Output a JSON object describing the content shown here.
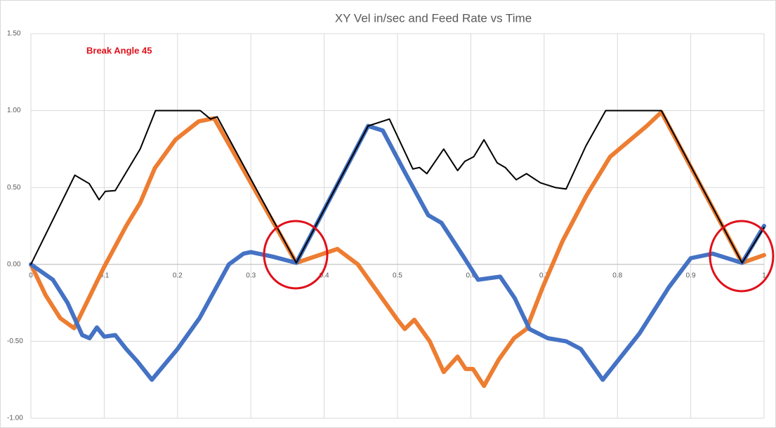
{
  "chart_data": {
    "type": "line",
    "title": "XY Vel in/sec and Feed Rate vs Time",
    "annotation": "Break Angle 45",
    "annotation_color": "#e0101a",
    "xlim": [
      0,
      1
    ],
    "xticks": [
      0,
      0.1,
      0.2,
      0.3,
      0.4,
      0.5,
      0.6,
      0.7,
      0.8,
      0.9,
      1
    ],
    "ylim": [
      -1,
      1.5
    ],
    "yticks": [
      {
        "value": -1,
        "label": "-1.00"
      },
      {
        "value": -0.5,
        "label": "-0.50"
      },
      {
        "value": 0,
        "label": "0.00"
      },
      {
        "value": 0.5,
        "label": "0.50"
      },
      {
        "value": 1,
        "label": "1.00"
      },
      {
        "value": 1.5,
        "label": "1.50"
      }
    ],
    "grid": true,
    "series": [
      {
        "color": "#000000",
        "width": 2,
        "x": [
          0,
          0.06,
          0.0795,
          0.093,
          0.1015,
          0.115,
          0.149,
          0.17,
          0.231,
          0.245,
          0.254,
          0.362,
          0.46,
          0.489,
          0.521,
          0.53,
          0.54,
          0.563,
          0.582,
          0.592,
          0.604,
          0.618,
          0.636,
          0.647,
          0.662,
          0.676,
          0.695,
          0.715,
          0.73,
          0.757,
          0.784,
          0.86,
          0.97,
          1.0
        ],
        "values": [
          0,
          0.58,
          0.525,
          0.42,
          0.475,
          0.48,
          0.75,
          1.0,
          1.0,
          0.945,
          0.96,
          0.01,
          0.9,
          0.945,
          0.62,
          0.63,
          0.59,
          0.75,
          0.61,
          0.67,
          0.7,
          0.81,
          0.66,
          0.63,
          0.55,
          0.59,
          0.53,
          0.5,
          0.49,
          0.77,
          1.0,
          1.0,
          0.01,
          0.24
        ]
      },
      {
        "color": "#ed7d31",
        "width": 6,
        "x": [
          0,
          0.02,
          0.04,
          0.059,
          0.0995,
          0.13,
          0.149,
          0.169,
          0.197,
          0.229,
          0.25,
          0.362,
          0.418,
          0.446,
          0.5,
          0.51,
          0.523,
          0.544,
          0.563,
          0.582,
          0.593,
          0.603,
          0.618,
          0.638,
          0.659,
          0.676,
          0.698,
          0.725,
          0.758,
          0.79,
          0.84,
          0.86,
          0.97,
          1.0
        ],
        "values": [
          0,
          -0.2,
          -0.35,
          -0.415,
          -0.02,
          0.25,
          0.4,
          0.625,
          0.81,
          0.93,
          0.95,
          0.01,
          0.1,
          0,
          -0.36,
          -0.42,
          -0.36,
          -0.5,
          -0.7,
          -0.6,
          -0.68,
          -0.68,
          -0.79,
          -0.62,
          -0.48,
          -0.42,
          -0.15,
          0.15,
          0.45,
          0.7,
          0.9,
          0.99,
          0.01,
          0.06
        ]
      },
      {
        "color": "#4472c4",
        "width": 6,
        "x": [
          0,
          0.03,
          0.05,
          0.07,
          0.08,
          0.09,
          0.1,
          0.115,
          0.13,
          0.145,
          0.165,
          0.2,
          0.23,
          0.27,
          0.29,
          0.3,
          0.33,
          0.362,
          0.46,
          0.48,
          0.51,
          0.542,
          0.56,
          0.59,
          0.61,
          0.64,
          0.66,
          0.68,
          0.705,
          0.73,
          0.75,
          0.78,
          0.83,
          0.87,
          0.9,
          0.93,
          0.97,
          1.0
        ],
        "values": [
          0,
          -0.1,
          -0.25,
          -0.46,
          -0.48,
          -0.41,
          -0.47,
          -0.46,
          -0.55,
          -0.63,
          -0.75,
          -0.55,
          -0.35,
          0,
          0.07,
          0.08,
          0.05,
          0.01,
          0.9,
          0.87,
          0.6,
          0.32,
          0.27,
          0.05,
          -0.1,
          -0.08,
          -0.22,
          -0.42,
          -0.48,
          -0.5,
          -0.55,
          -0.75,
          -0.45,
          -0.15,
          0.04,
          0.07,
          0.01,
          0.25
        ]
      }
    ]
  }
}
